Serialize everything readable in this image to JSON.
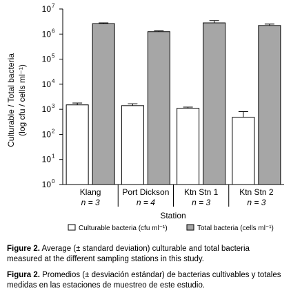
{
  "chart_data": {
    "type": "bar",
    "title": "",
    "xlabel": "Station",
    "ylabel_line1": "Culturable / Total bacteria",
    "ylabel_line2": "(log cfu / cells ml⁻¹)",
    "yscale": "log",
    "ylim": [
      1,
      10000000
    ],
    "yticks": [
      {
        "value": 1,
        "base": "10",
        "exp": "0"
      },
      {
        "value": 10,
        "base": "10",
        "exp": "1"
      },
      {
        "value": 100,
        "base": "10",
        "exp": "2"
      },
      {
        "value": 1000,
        "base": "10",
        "exp": "3"
      },
      {
        "value": 10000,
        "base": "10",
        "exp": "4"
      },
      {
        "value": 100000,
        "base": "10",
        "exp": "5"
      },
      {
        "value": 1000000,
        "base": "10",
        "exp": "6"
      },
      {
        "value": 10000000,
        "base": "10",
        "exp": "7"
      }
    ],
    "categories": [
      "Klang",
      "Port Dickson",
      "Ktn Stn 1",
      "Ktn Stn 2"
    ],
    "sample_sizes": [
      "n = 3",
      "n = 4",
      "n = 3",
      "n = 3"
    ],
    "series": [
      {
        "name": "Culturable bacteria (cfu ml⁻¹)",
        "color": "#ffffff",
        "values": [
          1500,
          1400,
          1100,
          480
        ],
        "error": [
          280,
          260,
          120,
          330
        ]
      },
      {
        "name": "Total bacteria (cells ml⁻¹)",
        "color": "#a6a6a6",
        "values": [
          2600000,
          1250000,
          2800000,
          2200000
        ],
        "error": [
          200000,
          90000,
          650000,
          300000
        ]
      }
    ],
    "legend_position": "bottom"
  },
  "captions": {
    "en_label": "Figure 2.",
    "en_text": " Average (± standard deviation) culturable and total bacteria measured at the different sampling stations in this study.",
    "es_label": "Figura 2.",
    "es_text": " Promedios (± desviación estándar) de bacterias cultivables y totales medidas en las estaciones de muestreo de este estudio."
  }
}
